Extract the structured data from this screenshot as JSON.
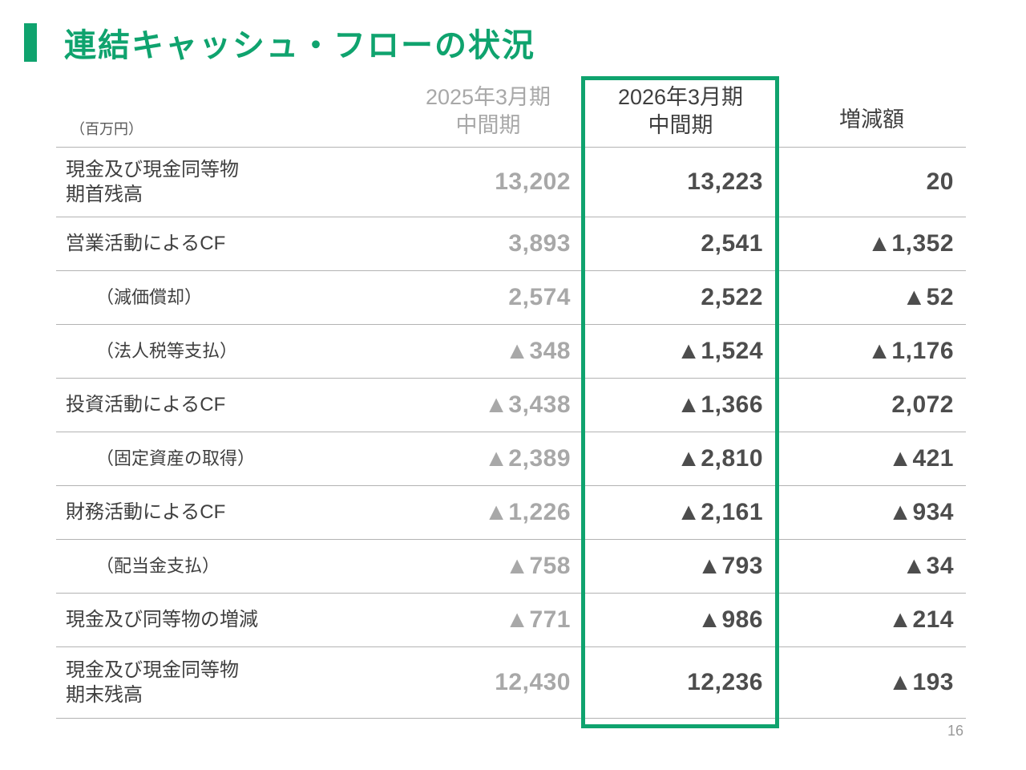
{
  "page": {
    "title": "連結キャッシュ・フローの状況",
    "page_number": "16"
  },
  "colors": {
    "accent": "#0FA36E",
    "muted": "#A8A8A8",
    "strong": "#4D4D4D",
    "label": "#3F3F3F",
    "line": "#B3B3B3",
    "unit": "#595959",
    "pagenum": "#999999"
  },
  "table": {
    "unit_label": "（百万円）",
    "headers": [
      "2025年3月期\n中間期",
      "2026年3月期\n中間期",
      "増減額"
    ],
    "rows": [
      {
        "label": "現金及び現金同等物\n期首残高",
        "v2025": "13,202",
        "v2026": "13,223",
        "vdiff": "20"
      },
      {
        "label": "営業活動によるCF",
        "v2025": "3,893",
        "v2026": "2,541",
        "vdiff": "▲1,352"
      },
      {
        "label": "（減価償却）",
        "v2025": "2,574",
        "v2026": "2,522",
        "vdiff": "▲52"
      },
      {
        "label": "（法人税等支払）",
        "v2025": "▲348",
        "v2026": "▲1,524",
        "vdiff": "▲1,176"
      },
      {
        "label": "投資活動によるCF",
        "v2025": "▲3,438",
        "v2026": "▲1,366",
        "vdiff": "2,072"
      },
      {
        "label": "（固定資産の取得）",
        "v2025": "▲2,389",
        "v2026": "▲2,810",
        "vdiff": "▲421"
      },
      {
        "label": "財務活動によるCF",
        "v2025": "▲1,226",
        "v2026": "▲2,161",
        "vdiff": "▲934"
      },
      {
        "label": "（配当金支払）",
        "v2025": "▲758",
        "v2026": "▲793",
        "vdiff": "▲34"
      },
      {
        "label": "現金及び同等物の増減",
        "v2025": "▲771",
        "v2026": "▲986",
        "vdiff": "▲214"
      },
      {
        "label": "現金及び現金同等物\n期末残高",
        "v2025": "12,430",
        "v2026": "12,236",
        "vdiff": "▲193"
      }
    ]
  }
}
